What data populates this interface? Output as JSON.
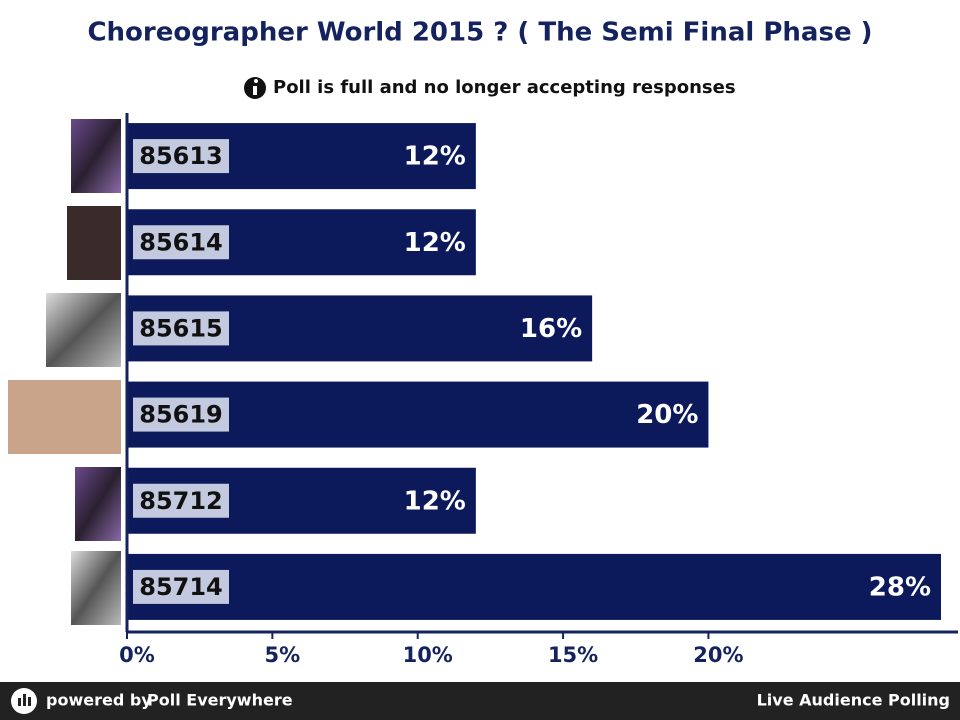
{
  "chart_data": {
    "type": "bar",
    "orientation": "horizontal",
    "title": "Choreographer World 2015 ? ( The Semi Final Phase )",
    "subtitle": "Poll is full and no longer accepting responses",
    "categories": [
      "85613",
      "85614",
      "85615",
      "85619",
      "85712",
      "85714"
    ],
    "values": [
      12,
      12,
      16,
      20,
      12,
      28
    ],
    "value_labels": [
      "12%",
      "12%",
      "16%",
      "20%",
      "12%",
      "28%"
    ],
    "color": "#0c1a5c",
    "xlim": [
      0,
      28
    ],
    "xticks": [
      {
        "value": 0,
        "label": "0%"
      },
      {
        "value": 5,
        "label": "5%"
      },
      {
        "value": 10,
        "label": "10%"
      },
      {
        "value": 15,
        "label": "15%"
      },
      {
        "value": 20,
        "label": "20%"
      }
    ],
    "grid": false
  },
  "footer": {
    "powered_by": "powered by",
    "brand": "Poll Everywhere",
    "tagline": "Live Audience Polling"
  }
}
